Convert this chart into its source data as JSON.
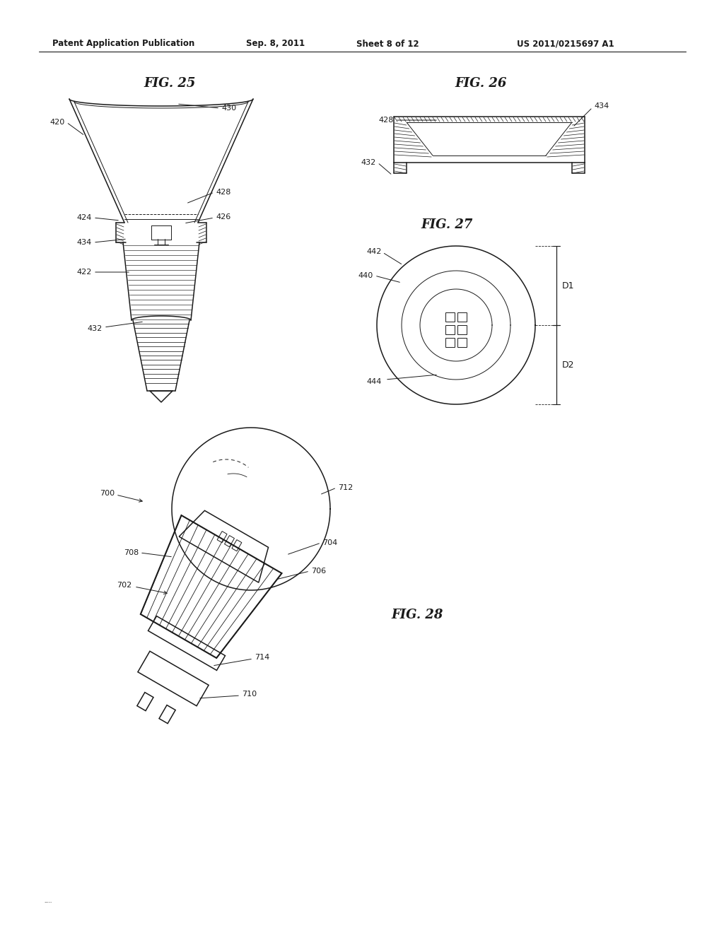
{
  "page_title_left": "Patent Application Publication",
  "page_title_center": "Sep. 8, 2011",
  "page_title_sheet": "Sheet 8 of 12",
  "page_title_right": "US 2011/0215697 A1",
  "fig25_title": "FIG. 25",
  "fig26_title": "FIG. 26",
  "fig27_title": "FIG. 27",
  "fig28_title": "FIG. 28",
  "background_color": "#ffffff",
  "line_color": "#1a1a1a"
}
